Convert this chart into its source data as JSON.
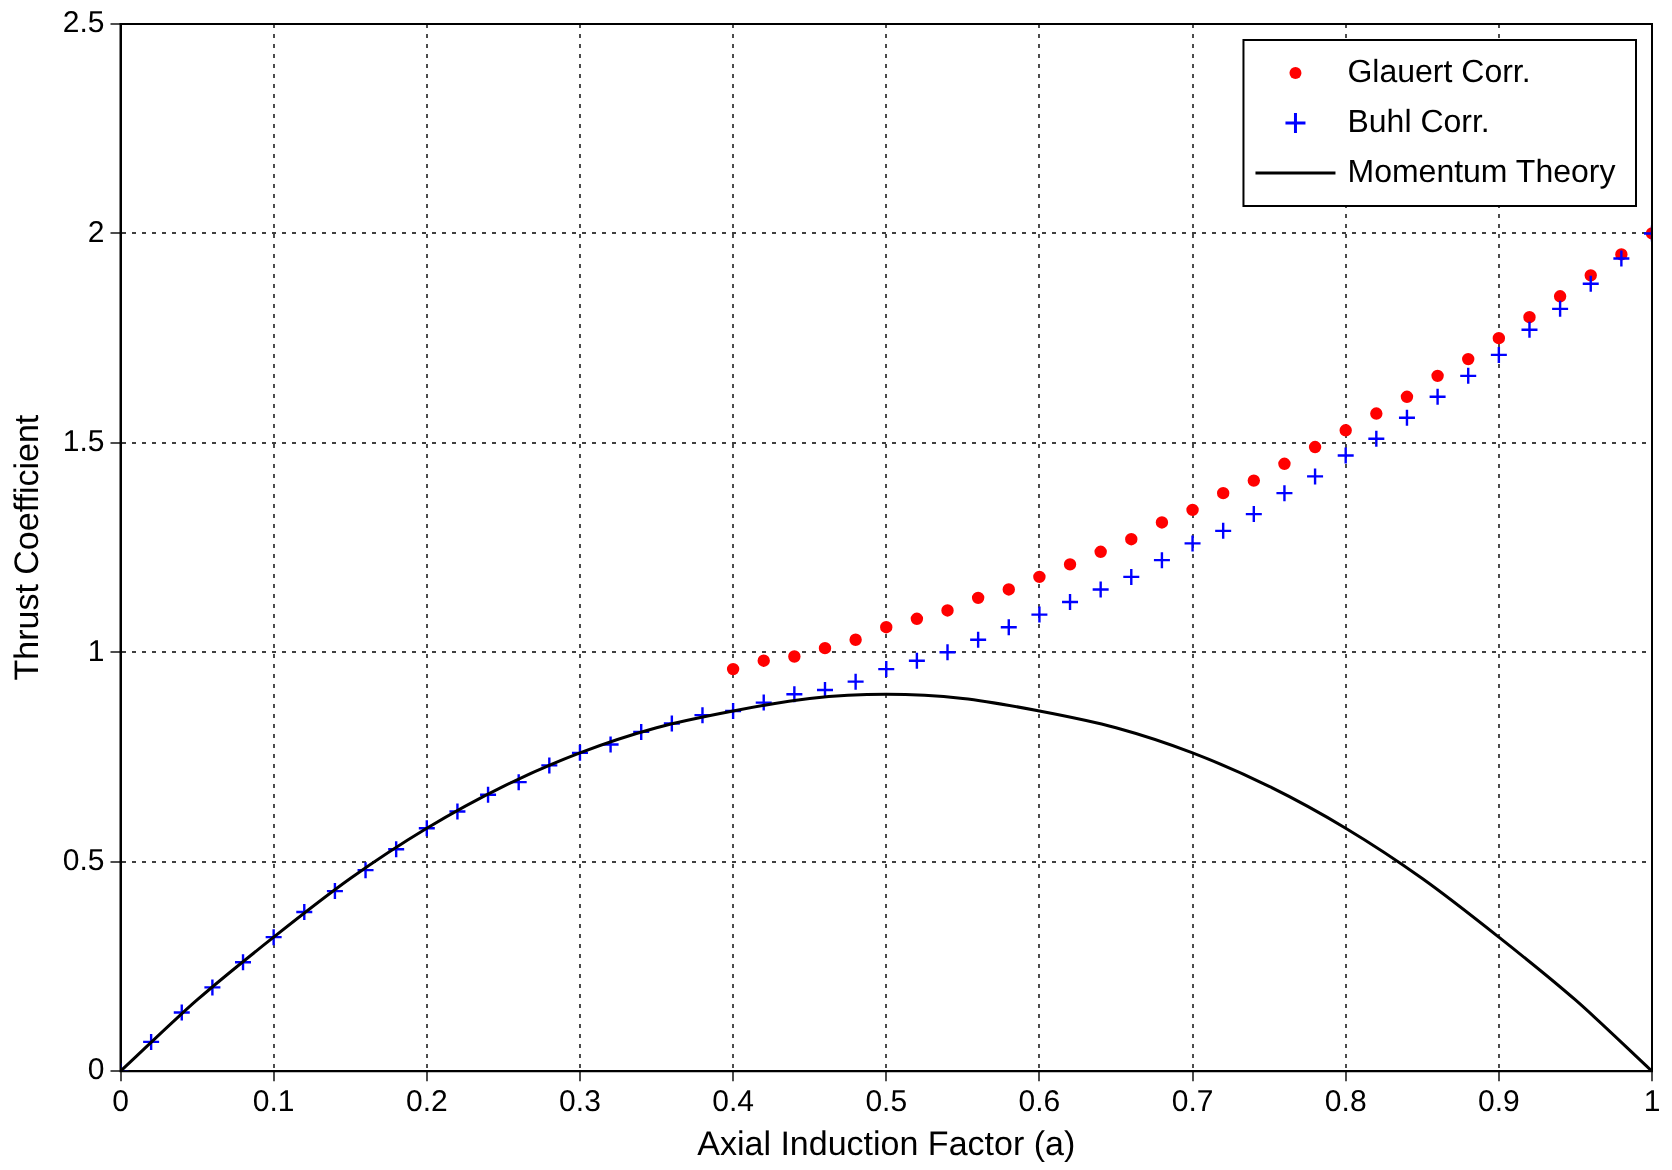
{
  "chart_data": {
    "type": "scatter",
    "xlabel": "Axial Induction Factor (a)",
    "ylabel": "Thrust Coefficient",
    "xlim": [
      0,
      1
    ],
    "xticks": [
      0,
      0.1,
      0.2,
      0.3,
      0.4,
      0.5,
      0.6,
      0.7,
      0.8,
      0.9,
      1
    ],
    "ylim": [
      0,
      2.5
    ],
    "yticks": [
      0,
      0.5,
      1,
      1.5,
      2,
      2.5
    ],
    "grid": true,
    "legend": "top right",
    "series": [
      {
        "name": "Glauert Corr.",
        "color": "#ff0000",
        "marker": "circle",
        "x": [
          0.4,
          0.42,
          0.44,
          0.46,
          0.48,
          0.5,
          0.52,
          0.54,
          0.56,
          0.58,
          0.6,
          0.62,
          0.64,
          0.66,
          0.68,
          0.7,
          0.72,
          0.74,
          0.76,
          0.78,
          0.8,
          0.82,
          0.84,
          0.86,
          0.88,
          0.9,
          0.92,
          0.94,
          0.96,
          0.98,
          1
        ],
        "values": [
          0.96,
          0.98,
          0.99,
          1.01,
          1.03,
          1.06,
          1.08,
          1.1,
          1.13,
          1.15,
          1.18,
          1.21,
          1.24,
          1.27,
          1.31,
          1.34,
          1.38,
          1.41,
          1.45,
          1.49,
          1.53,
          1.57,
          1.61,
          1.66,
          1.7,
          1.75,
          1.8,
          1.85,
          1.9,
          1.95,
          2
        ]
      },
      {
        "name": "Buhl Corr.",
        "color": "#0000ff",
        "marker": "cross",
        "x": [
          0,
          0.02,
          0.04,
          0.06,
          0.08,
          0.1,
          0.12,
          0.14,
          0.16,
          0.18,
          0.2,
          0.22,
          0.24,
          0.26,
          0.28,
          0.3,
          0.32,
          0.34,
          0.36,
          0.38,
          0.4,
          0.42,
          0.44,
          0.46,
          0.48,
          0.5,
          0.52,
          0.54,
          0.56,
          0.58,
          0.6,
          0.62,
          0.64,
          0.66,
          0.68,
          0.7,
          0.72,
          0.74,
          0.76,
          0.78,
          0.8,
          0.82,
          0.84,
          0.86,
          0.88,
          0.9,
          0.92,
          0.94,
          0.96,
          0.98,
          1
        ],
        "values": [
          0,
          0.07,
          0.14,
          0.2,
          0.26,
          0.32,
          0.38,
          0.43,
          0.48,
          0.53,
          0.58,
          0.62,
          0.66,
          0.69,
          0.73,
          0.76,
          0.78,
          0.81,
          0.83,
          0.85,
          0.86,
          0.88,
          0.9,
          0.91,
          0.93,
          0.96,
          0.98,
          1,
          1.03,
          1.06,
          1.09,
          1.12,
          1.15,
          1.18,
          1.22,
          1.26,
          1.29,
          1.33,
          1.38,
          1.42,
          1.47,
          1.51,
          1.56,
          1.61,
          1.66,
          1.71,
          1.77,
          1.82,
          1.88,
          1.94,
          2
        ]
      },
      {
        "name": "Momentum Theory",
        "type": "line",
        "color": "#000000",
        "marker": "none",
        "x": [
          0,
          0.05,
          0.1,
          0.15,
          0.2,
          0.25,
          0.3,
          0.35,
          0.4,
          0.45,
          0.5,
          0.55,
          0.6,
          0.65,
          0.7,
          0.75,
          0.8,
          0.85,
          0.9,
          0.95,
          1
        ],
        "values": [
          0,
          0.17,
          0.32,
          0.46,
          0.58,
          0.68,
          0.76,
          0.82,
          0.86,
          0.89,
          0.9,
          0.89,
          0.86,
          0.82,
          0.76,
          0.68,
          0.58,
          0.46,
          0.32,
          0.17,
          0
        ]
      }
    ]
  }
}
